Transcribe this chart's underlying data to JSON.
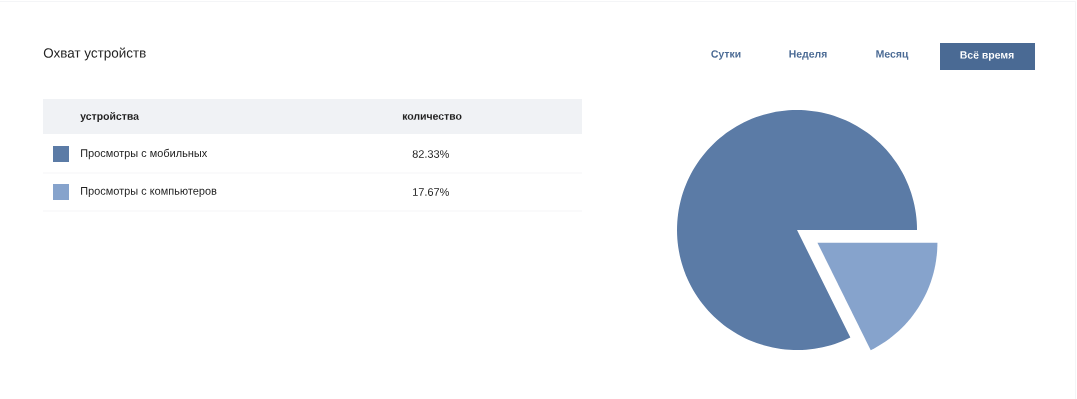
{
  "chart_data": {
    "type": "pie",
    "title": "Охват устройств",
    "categories": [
      "Просмотры с мобильных",
      "Просмотры с компьютеров"
    ],
    "values": [
      82.33,
      17.67
    ],
    "colors": [
      "#5b7ba6",
      "#86a3cc"
    ],
    "value_labels": [
      "82.33%",
      "17.67%"
    ],
    "legend": "left",
    "annotations": [
      "Сутки",
      "Неделя",
      "Месяц",
      "Всё время",
      "устройства",
      "количество"
    ]
  }
}
